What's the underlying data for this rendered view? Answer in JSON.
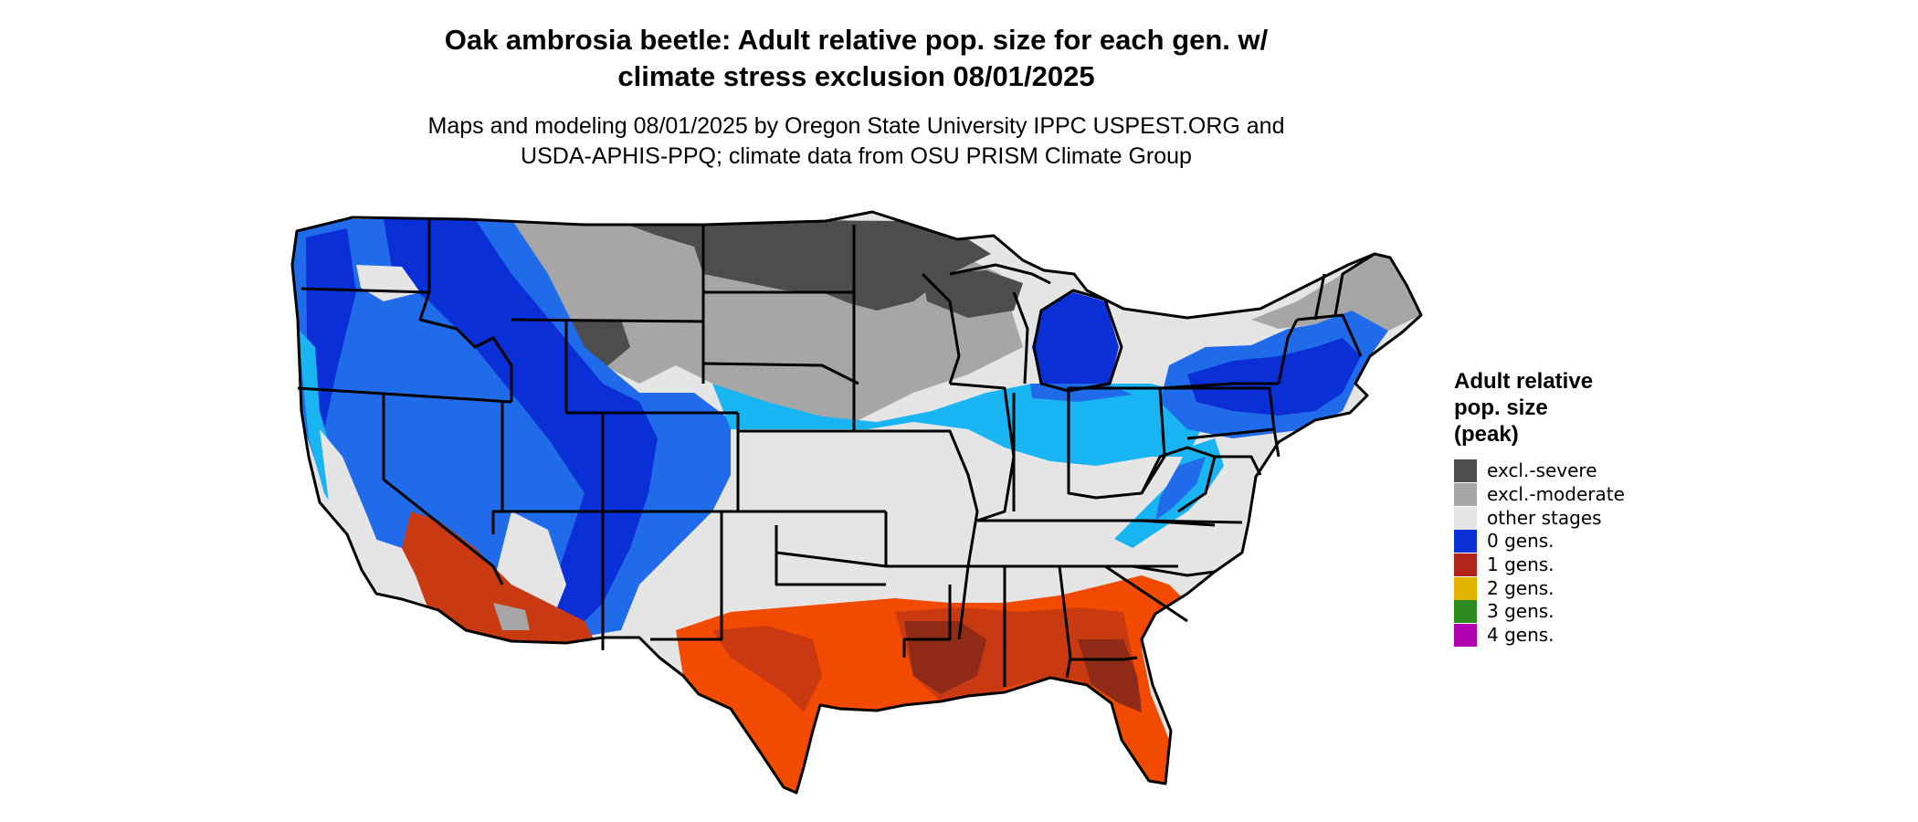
{
  "title": {
    "line1": "Oak ambrosia beetle: Adult relative pop. size for each gen. w/",
    "line2": "climate stress exclusion 08/01/2025"
  },
  "subtitle": {
    "line1": "Maps and modeling 08/01/2025 by Oregon State University IPPC USPEST.ORG and",
    "line2": "USDA-APHIS-PPQ; climate data from OSU PRISM Climate Group"
  },
  "legend": {
    "title_lines": [
      "Adult relative",
      "pop. size",
      "(peak)"
    ],
    "items": [
      {
        "label": "excl.-severe",
        "color": "#4d4d4d"
      },
      {
        "label": "excl.-moderate",
        "color": "#a6a6a6"
      },
      {
        "label": "other stages",
        "color": "#e5e5e5"
      },
      {
        "label": "0 gens.",
        "color": "#0a2fd6"
      },
      {
        "label": "1 gens.",
        "color": "#b0241a"
      },
      {
        "label": "2 gens.",
        "color": "#e0b400"
      },
      {
        "label": "3 gens.",
        "color": "#2e8b22"
      },
      {
        "label": "4 gens.",
        "color": "#b000b0"
      }
    ]
  },
  "map_colors": {
    "excl_severe": "#4d4d4d",
    "excl_moderate": "#a6a6a6",
    "other_stages": "#e5e5e5",
    "gen0_dark": "#0a2fd6",
    "gen0_mid": "#1f6bea",
    "gen0_light": "#19b4f2",
    "gen1_dark": "#8e2a16",
    "gen1_mid": "#c93a12",
    "gen1_light": "#f24a00",
    "state_border": "#000000"
  }
}
